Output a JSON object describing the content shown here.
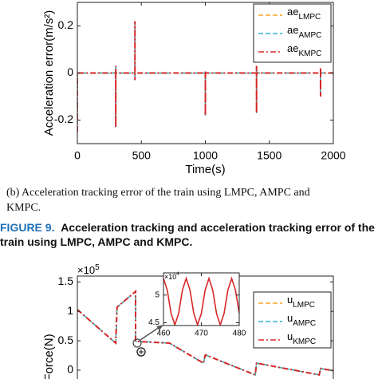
{
  "chart_data": [
    {
      "type": "line",
      "ylabel": "Acceleration error(m/s²)",
      "xlabel": "Time(s)",
      "xlim": [
        0,
        2000
      ],
      "xticks": [
        0,
        500,
        1000,
        1500,
        2000
      ],
      "ylim": [
        -0.3,
        0.3
      ],
      "yticks": [
        -0.2,
        0,
        0.2
      ],
      "x": [
        0,
        0,
        300,
        300,
        300,
        300,
        450,
        450,
        450,
        450,
        1000,
        1000,
        1000,
        1000,
        1400,
        1400,
        1400,
        1400,
        1900,
        1900,
        1900,
        1900,
        2000
      ],
      "series": [
        {
          "name": "ae",
          "name_sub": "LMPC",
          "color": "#f5a623",
          "values": [
            -0.25,
            0,
            0,
            0.03,
            -0.23,
            0,
            0,
            0.22,
            -0.03,
            0,
            0,
            0.01,
            -0.18,
            0,
            0,
            0.03,
            -0.17,
            0,
            0,
            0.02,
            -0.1,
            0,
            0
          ]
        },
        {
          "name": "ae",
          "name_sub": "AMPC",
          "color": "#2bb5c8",
          "values": [
            -0.25,
            0,
            0,
            0.03,
            -0.23,
            0,
            0,
            0.22,
            -0.03,
            0,
            0,
            0.01,
            -0.18,
            0,
            0,
            0.03,
            -0.17,
            0,
            0,
            0.02,
            -0.1,
            0,
            0
          ]
        },
        {
          "name": "ae",
          "name_sub": "KMPC",
          "color": "#d62728",
          "values": [
            -0.25,
            0,
            0,
            0.03,
            -0.23,
            0,
            0,
            0.22,
            -0.03,
            0,
            0,
            0.01,
            -0.18,
            0,
            0,
            0.03,
            -0.17,
            0,
            0,
            0.02,
            -0.1,
            0,
            0
          ]
        }
      ]
    },
    {
      "type": "line",
      "ylabel": "Force(N)",
      "y_multiplier": "×10",
      "y_multiplier_exp": "5",
      "xlim": [
        0,
        2000
      ],
      "ylim": [
        -0.15,
        1.6
      ],
      "yticks": [
        0,
        0.5,
        1,
        1.5
      ],
      "x": [
        0,
        300,
        310,
        455,
        455,
        720,
        985,
        1000,
        1390,
        1400,
        1890,
        1900,
        2000
      ],
      "series": [
        {
          "name": "u",
          "name_sub": "LMPC",
          "color": "#f5a623",
          "values": [
            1.03,
            0.46,
            1.07,
            1.34,
            0.49,
            0.46,
            0.12,
            0.26,
            -0.08,
            0.12,
            -0.08,
            0.03,
            -0.01
          ]
        },
        {
          "name": "u",
          "name_sub": "AMPC",
          "color": "#2bb5c8",
          "values": [
            1.03,
            0.46,
            1.07,
            1.34,
            0.49,
            0.46,
            0.12,
            0.26,
            -0.08,
            0.12,
            -0.08,
            0.03,
            -0.01
          ]
        },
        {
          "name": "u",
          "name_sub": "KMPC",
          "color": "#d62728",
          "values": [
            1.03,
            0.46,
            1.07,
            1.34,
            0.49,
            0.46,
            0.12,
            0.26,
            -0.08,
            0.12,
            -0.08,
            0.03,
            -0.01
          ]
        }
      ]
    },
    {
      "type": "line",
      "y_multiplier": "×10",
      "y_multiplier_exp": "4",
      "xlim": [
        460,
        480
      ],
      "xticks": [
        460,
        470,
        480
      ],
      "ylim": [
        4.45,
        5.4
      ],
      "yticks": [
        4.5,
        5
      ],
      "x": [
        460,
        461,
        462,
        463,
        464,
        465,
        466,
        467,
        468,
        469,
        470,
        471,
        472,
        473,
        474,
        475,
        476,
        477,
        478,
        479,
        480
      ],
      "series": [
        {
          "color": "#d62728",
          "values": [
            5.3,
            5.09,
            4.67,
            4.46,
            4.67,
            5.09,
            5.3,
            5.09,
            4.67,
            4.46,
            4.67,
            5.09,
            5.3,
            5.09,
            4.67,
            4.46,
            4.67,
            5.09,
            5.3,
            5.09,
            4.67
          ]
        }
      ]
    }
  ],
  "subcaption": {
    "line1": "(b) Acceleration tracking error of the train using LMPC, AMPC and",
    "line2": "KMPC."
  },
  "figure_caption": {
    "label": "FIGURE 9.",
    "line1": "Acceleration tracking and acceleration tracking error of the",
    "line2": "train using LMPC, AMPC and KMPC."
  }
}
